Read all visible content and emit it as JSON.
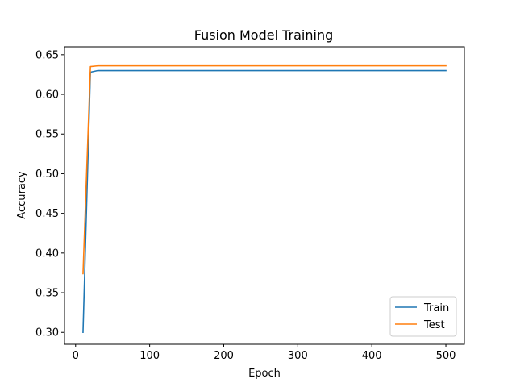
{
  "chart_data": {
    "type": "line",
    "title": "Fusion Model Training",
    "xlabel": "Epoch",
    "ylabel": "Accuracy",
    "xlim": [
      -15,
      525
    ],
    "ylim": [
      0.285,
      0.66
    ],
    "x_ticks": [
      0,
      100,
      200,
      300,
      400,
      500
    ],
    "y_ticks": [
      0.3,
      0.35,
      0.4,
      0.45,
      0.5,
      0.55,
      0.6,
      0.65
    ],
    "y_tick_labels": [
      "0.30",
      "0.35",
      "0.40",
      "0.45",
      "0.50",
      "0.55",
      "0.60",
      "0.65"
    ],
    "grid": false,
    "legend_position": "lower-right",
    "series": [
      {
        "name": "Train",
        "color": "#1f77b4",
        "x": [
          10,
          20,
          30,
          40,
          50,
          100,
          200,
          300,
          400,
          500
        ],
        "y": [
          0.3,
          0.628,
          0.63,
          0.63,
          0.63,
          0.63,
          0.63,
          0.63,
          0.63,
          0.63
        ]
      },
      {
        "name": "Test",
        "color": "#ff7f0e",
        "x": [
          10,
          20,
          30,
          40,
          50,
          100,
          200,
          300,
          400,
          500
        ],
        "y": [
          0.374,
          0.635,
          0.636,
          0.636,
          0.636,
          0.636,
          0.636,
          0.636,
          0.636,
          0.636
        ]
      }
    ]
  }
}
